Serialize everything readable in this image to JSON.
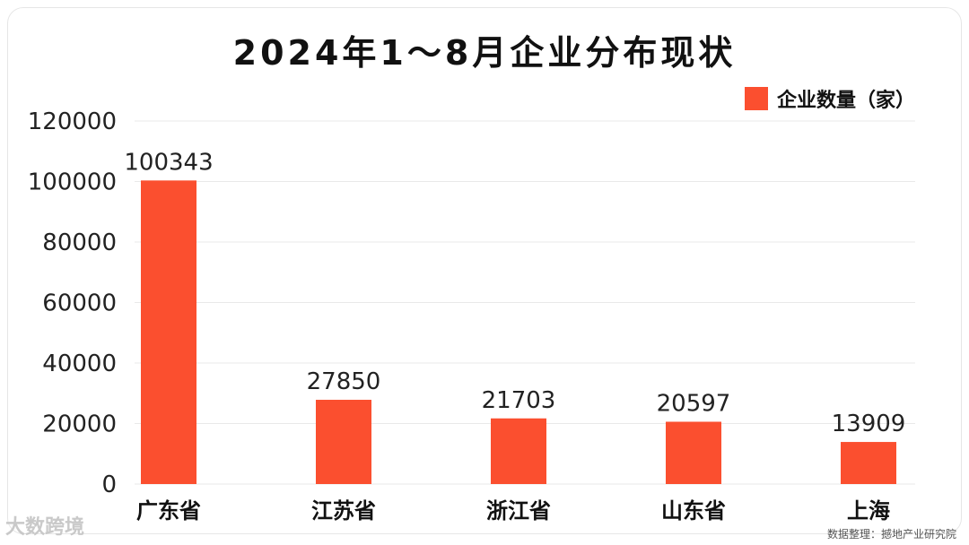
{
  "chart_data": {
    "type": "bar",
    "title": "2024年1～8月企业分布现状",
    "categories": [
      "广东省",
      "江苏省",
      "浙江省",
      "山东省",
      "上海"
    ],
    "series": [
      {
        "name": "企业数量（家）",
        "values": [
          100343,
          27850,
          21703,
          20597,
          13909
        ]
      }
    ],
    "ylim": [
      0,
      120000
    ],
    "yticks": [
      0,
      20000,
      40000,
      60000,
      80000,
      100000,
      120000
    ],
    "grid": true,
    "legend": "top-right",
    "bar_color": "#fb4f2f"
  },
  "watermark": {
    "source": "数据整理：撼地产业研究院",
    "brand": "大数跨境"
  }
}
